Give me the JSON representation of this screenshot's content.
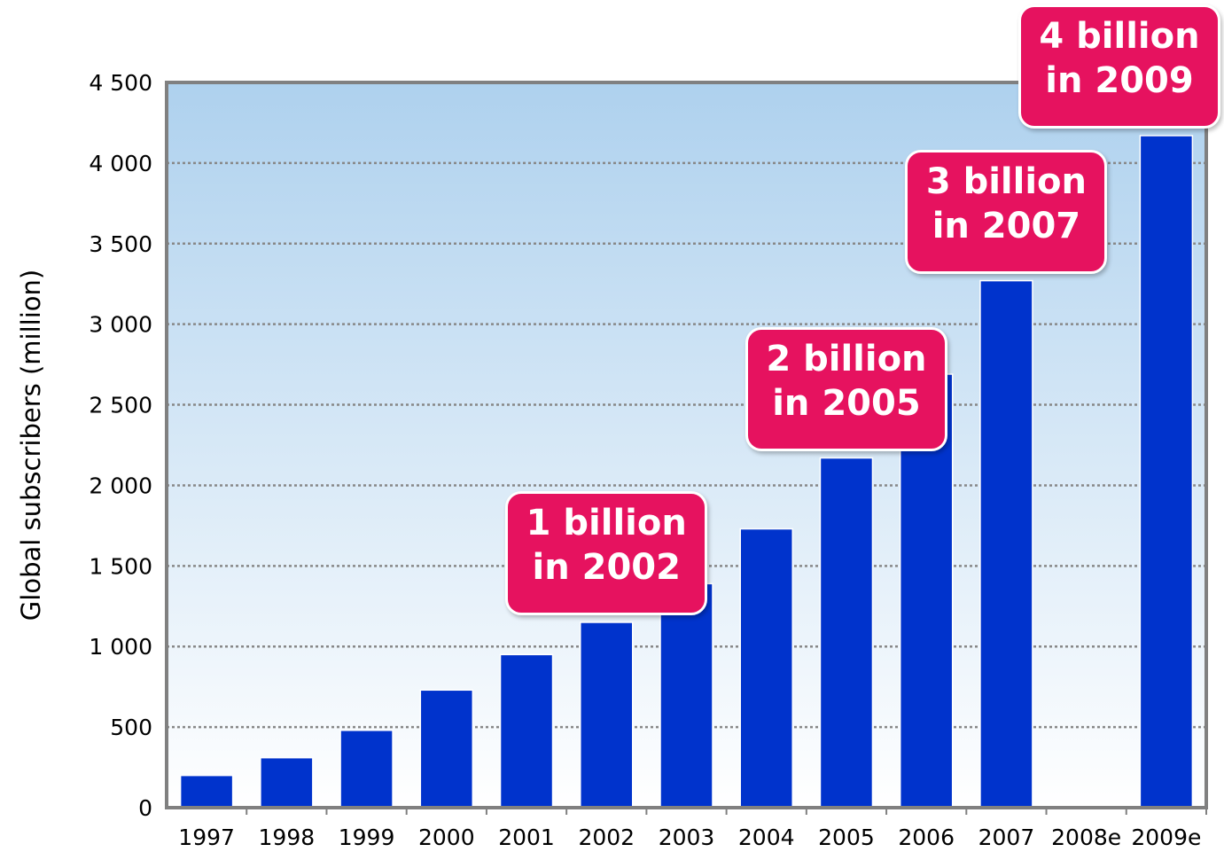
{
  "chart_data": {
    "type": "bar",
    "title": "",
    "xlabel": "",
    "ylabel": "Global subscribers (million)",
    "categories": [
      "1997",
      "1998",
      "1999",
      "2000",
      "2001",
      "2002",
      "2003",
      "2004",
      "2005",
      "2006",
      "2007",
      "2008e",
      "2009e"
    ],
    "values": [
      200,
      310,
      480,
      730,
      950,
      1150,
      1390,
      1730,
      2170,
      2690,
      3270,
      null,
      4170
    ],
    "ylim": [
      0,
      4500
    ],
    "yticks": [
      0,
      500,
      1000,
      1500,
      2000,
      2500,
      3000,
      3500,
      4000,
      4500
    ],
    "ytick_labels": [
      "0",
      "500",
      "1 000",
      "1 500",
      "2 000",
      "2 500",
      "3 000",
      "3 500",
      "4 000",
      "4 500"
    ],
    "grid": true,
    "colors": {
      "bar": "#0033cc",
      "callout": "#e6125f",
      "plot_top": "#aed1ee",
      "plot_bottom": "#ffffff",
      "frame": "#808080"
    },
    "annotations": [
      {
        "category": "2002",
        "line1": "1 billion",
        "line2": "in 2002"
      },
      {
        "category": "2005",
        "line1": "2 billion",
        "line2": "in 2005"
      },
      {
        "category": "2007",
        "line1": "3 billion",
        "line2": "in 2007"
      },
      {
        "category": "2009e",
        "line1": "4 billion",
        "line2": "in 2009"
      }
    ]
  }
}
